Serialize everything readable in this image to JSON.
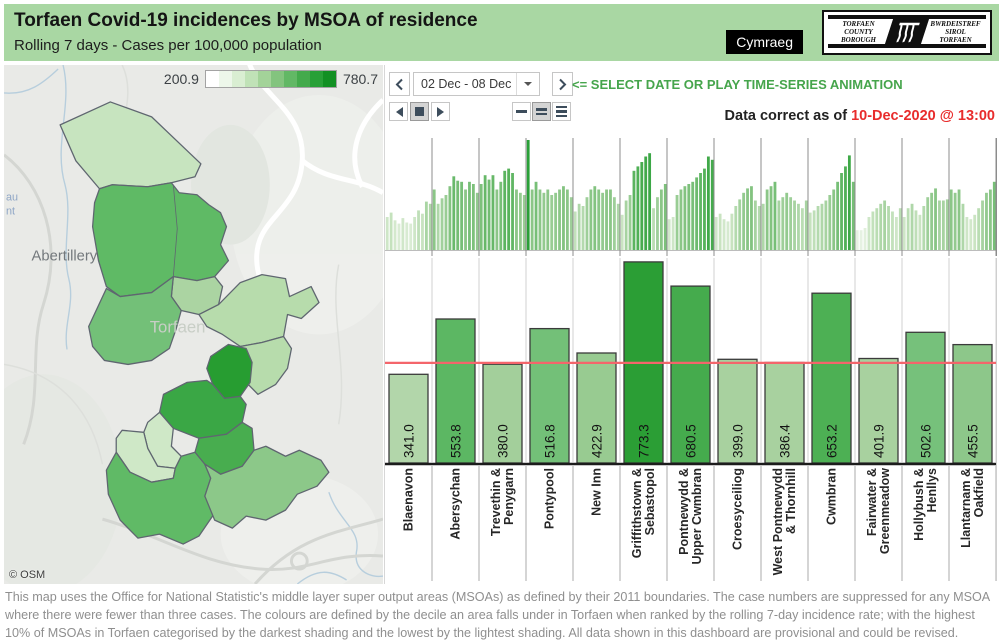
{
  "header": {
    "title": "Torfaen Covid-19 incidences by MSOA of residence",
    "subtitle": "Rolling 7 days - Cases per 100,000 population",
    "language_button": "Cymraeg",
    "logo": {
      "left_lines": "TORFAEN\nCOUNTY\nBOROUGH",
      "right_lines": "BWRDEISTREF\nSIROL\nTORFAEN"
    }
  },
  "controls": {
    "date_range": "02 Dec - 08 Dec",
    "hint": "<= SELECT DATE OR PLAY TIME-SERIES ANIMATION",
    "data_correct_prefix": "Data correct as of ",
    "data_correct_value": "10-Dec-2020 @ 13:00"
  },
  "legend": {
    "min": "200.9",
    "max": "780.7",
    "ramp": [
      "#ffffff",
      "#edf7ea",
      "#d9eed2",
      "#c0e2b7",
      "#a3d399",
      "#83c47e",
      "#62b865",
      "#44aa4c",
      "#28a037",
      "#129023"
    ]
  },
  "map": {
    "attribution": "© OSM",
    "labels": {
      "town": "Abertillery",
      "watermark": "Torfaen",
      "edge_fragment_top": "au",
      "edge_fragment_bottom": "nt"
    },
    "region_colors": [
      "#c7e4bf",
      "#5fba65",
      "#abd4a2",
      "#73c078",
      "#b7dcac",
      "#279d31",
      "#3aa745",
      "#b7dcac",
      "#cfe8c7",
      "#48ad4f",
      "#cfe8c7",
      "#60ba66",
      "#8cc889"
    ]
  },
  "chart_data": {
    "type": "bar",
    "title": "Rolling 7 days - Cases per 100,000 population",
    "categories": [
      "Blaenavon",
      "Abersychan",
      "Trevethin & Penygarn",
      "Pontypool",
      "New Inn",
      "Griffithstown & Sebastopol",
      "Pontnewydd & Upper Cwmbran",
      "Croesyceiliog",
      "West Pontnewydd & Thornhill",
      "Cwmbran",
      "Fairwater & Greenmeadow",
      "Hollybush & Henllys",
      "Llantarnam & Oakfield"
    ],
    "category_label_lines": [
      [
        "Blaenavon"
      ],
      [
        "Abersychan"
      ],
      [
        "Trevethin &",
        "Penygarn"
      ],
      [
        "Pontypool"
      ],
      [
        "New Inn"
      ],
      [
        "Griffithstown &",
        "Sebastopol"
      ],
      [
        "Pontnewydd &",
        "Upper Cwmbran"
      ],
      [
        "Croesyceiliog"
      ],
      [
        "West Pontnewydd",
        "& Thornhill"
      ],
      [
        "Cwmbran"
      ],
      [
        "Fairwater &",
        "Greenmeadow"
      ],
      [
        "Hollybush &",
        "Henllys"
      ],
      [
        "Llantarnam &",
        "Oakfield"
      ]
    ],
    "values": [
      341.0,
      553.8,
      380.0,
      516.8,
      422.9,
      773.3,
      680.5,
      399.0,
      386.4,
      653.2,
      401.9,
      502.6,
      455.5
    ],
    "value_labels": [
      "341.0",
      "553.8",
      "380.0",
      "516.8",
      "422.9",
      "773.3",
      "680.5",
      "399.0",
      "386.4",
      "653.2",
      "401.9",
      "502.6",
      "455.5"
    ],
    "bar_colors": [
      "#b2d6aa",
      "#5cb763",
      "#a3cf9b",
      "#73c078",
      "#98cb91",
      "#2b9e35",
      "#45ab4d",
      "#a8d19f",
      "#a8d19f",
      "#4db054",
      "#a8d19f",
      "#76c17b",
      "#8dc78a"
    ],
    "ylim": [
      0,
      780.7
    ],
    "reference_line": {
      "value": 385,
      "color": "#f4656b"
    },
    "sparklines": {
      "type": "bar",
      "note_scale": "relative 0-1 per shared axis",
      "series": [
        {
          "name": "Blaenavon",
          "values": [
            0.3,
            0.34,
            0.27,
            0.24,
            0.29,
            0.25,
            0.24,
            0.3,
            0.36,
            0.33,
            0.44,
            0.42
          ]
        },
        {
          "name": "Abersychan",
          "values": [
            0.55,
            0.42,
            0.47,
            0.5,
            0.58,
            0.67,
            0.63,
            0.62,
            0.55,
            0.62,
            0.6,
            0.52
          ]
        },
        {
          "name": "Trevethin & Penygarn",
          "values": [
            0.6,
            0.68,
            0.64,
            0.68,
            0.55,
            0.62,
            0.72,
            0.74,
            0.7,
            0.55,
            0.52,
            0.5
          ]
        },
        {
          "name": "Pontypool",
          "values": [
            1.0,
            0.55,
            0.62,
            0.55,
            0.52,
            0.55,
            0.5,
            0.52,
            0.55,
            0.58,
            0.55,
            0.48
          ]
        },
        {
          "name": "New Inn",
          "values": [
            0.35,
            0.42,
            0.4,
            0.48,
            0.55,
            0.58,
            0.55,
            0.52,
            0.55,
            0.55,
            0.48,
            0.42
          ]
        },
        {
          "name": "Griffithstown & Sebastopol",
          "values": [
            0.32,
            0.45,
            0.5,
            0.72,
            0.76,
            0.8,
            0.85,
            0.88,
            0.38,
            0.48,
            0.55,
            0.6
          ]
        },
        {
          "name": "Pontnewydd & Upper Cwmbran",
          "values": [
            0.28,
            0.3,
            0.5,
            0.55,
            0.58,
            0.6,
            0.62,
            0.66,
            0.7,
            0.74,
            0.85,
            0.82
          ]
        },
        {
          "name": "Croesyceiliog",
          "values": [
            0.3,
            0.33,
            0.28,
            0.26,
            0.33,
            0.4,
            0.46,
            0.52,
            0.56,
            0.58,
            0.45,
            0.4
          ]
        },
        {
          "name": "West Pontnewydd & Thornhill",
          "values": [
            0.42,
            0.55,
            0.58,
            0.62,
            0.45,
            0.48,
            0.52,
            0.48,
            0.45,
            0.42,
            0.38,
            0.45
          ]
        },
        {
          "name": "Cwmbran",
          "values": [
            0.34,
            0.36,
            0.4,
            0.42,
            0.45,
            0.5,
            0.55,
            0.62,
            0.7,
            0.76,
            0.86,
            0.62
          ]
        },
        {
          "name": "Fairwater & Greenmeadow",
          "values": [
            0.18,
            0.18,
            0.2,
            0.3,
            0.35,
            0.38,
            0.42,
            0.45,
            0.4,
            0.35,
            0.3,
            0.38
          ]
        },
        {
          "name": "Hollybush & Henllys",
          "values": [
            0.3,
            0.38,
            0.42,
            0.36,
            0.32,
            0.4,
            0.48,
            0.52,
            0.56,
            0.45,
            0.45,
            0.46
          ]
        },
        {
          "name": "Llantarnam & Oakfield",
          "values": [
            0.55,
            0.52,
            0.55,
            0.42,
            0.3,
            0.28,
            0.32,
            0.38,
            0.45,
            0.52,
            0.55,
            0.62
          ]
        }
      ],
      "spark_ramp": [
        "#f6faf4",
        "#c9e4c1",
        "#8bc687",
        "#4cae52",
        "#2aa038"
      ]
    }
  },
  "footer": {
    "text": "This map uses the Office for National Statistic's middle layer super output areas (MSOAs) as defined by their 2011 boundaries. The case numbers are suppressed for any MSOA where there were fewer than three cases. The colours are defined by the decile an area falls under in Torfaen when ranked by the rolling 7-day incidence rate; with the highest 10% of MSOAs in Torfaen categorised by the darkest shading and the lowest by the lightest shading.  All data shown in this dashboard are provisional and could be revised."
  }
}
